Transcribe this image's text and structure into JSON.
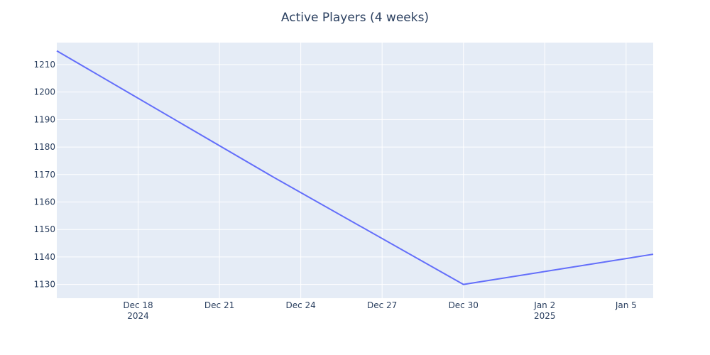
{
  "chart_data": {
    "type": "line",
    "title": "Active Players (4 weeks)",
    "xlabel": "",
    "ylabel": "",
    "x_axis_type": "date",
    "xlim": [
      "2024-12-15",
      "2025-01-06"
    ],
    "ylim": [
      1125,
      1218
    ],
    "grid": true,
    "legend": "none",
    "x_ticks": [
      {
        "date": "2024-12-18",
        "label": "Dec 18",
        "sublabel": "2024"
      },
      {
        "date": "2024-12-21",
        "label": "Dec 21",
        "sublabel": ""
      },
      {
        "date": "2024-12-24",
        "label": "Dec 24",
        "sublabel": ""
      },
      {
        "date": "2024-12-27",
        "label": "Dec 27",
        "sublabel": ""
      },
      {
        "date": "2024-12-30",
        "label": "Dec 30",
        "sublabel": ""
      },
      {
        "date": "2025-01-02",
        "label": "Jan 2",
        "sublabel": "2025"
      },
      {
        "date": "2025-01-05",
        "label": "Jan 5",
        "sublabel": ""
      }
    ],
    "y_ticks": [
      1130,
      1140,
      1150,
      1160,
      1170,
      1180,
      1190,
      1200,
      1210
    ],
    "series": [
      {
        "color": "#636efa",
        "points": [
          {
            "x": "2024-12-15",
            "y": 1215
          },
          {
            "x": "2024-12-23",
            "y": 1169
          },
          {
            "x": "2024-12-30",
            "y": 1130
          },
          {
            "x": "2025-01-06",
            "y": 1141
          }
        ]
      }
    ]
  },
  "colors": {
    "plot_background": "#e5ecf6",
    "grid": "#ffffff",
    "text": "#2a3f5f"
  }
}
